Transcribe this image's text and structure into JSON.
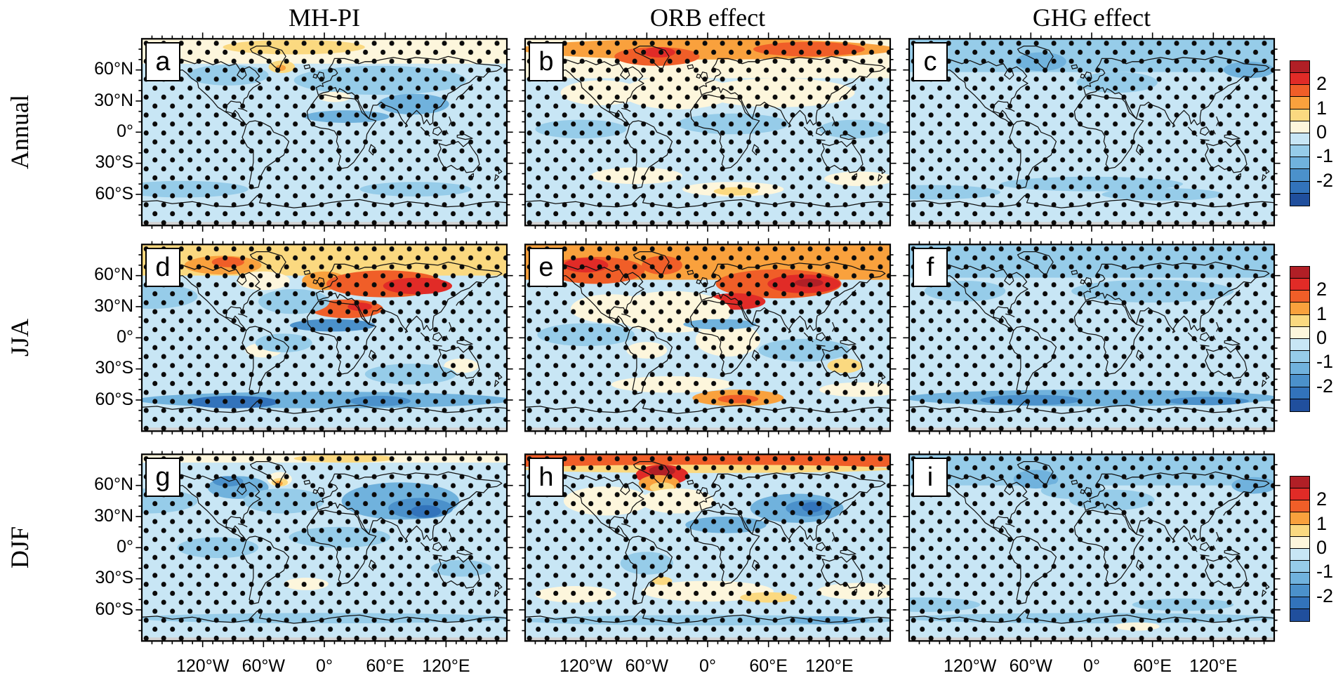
{
  "chart_data": {
    "type": "heatmap",
    "description": "3x3 grid of global equirectangular maps of surface temperature anomalies with black stippling dots over significant regions; shared discrete red-blue colorbar per row.",
    "columns": [
      "MH-PI",
      "ORB effect",
      "GHG effect"
    ],
    "rows": [
      "Annual",
      "JJA",
      "DJF"
    ],
    "x_tick_labels": [
      "120°W",
      "60°W",
      "0°",
      "60°E",
      "120°E"
    ],
    "x_tick_lons": [
      -120,
      -60,
      0,
      60,
      120
    ],
    "y_tick_labels": [
      "60°N",
      "30°N",
      "0°",
      "30°S",
      "60°S"
    ],
    "y_tick_lats": [
      60,
      30,
      0,
      -30,
      -60
    ],
    "lon_range": [
      -180,
      180
    ],
    "lat_range": [
      -90,
      90
    ],
    "stippling": "black dots in a diagonal lattice covering most of every map",
    "polar_gap_color": "#d2d2d2",
    "coast_color": "#111111",
    "colorbar": {
      "orientation": "vertical",
      "segment_colors_top_to_bottom": [
        "#b11f26",
        "#e12b27",
        "#f05e28",
        "#f9a13d",
        "#fbd980",
        "#fdf6dc",
        "#c8e6f5",
        "#96cce9",
        "#70b2dd",
        "#4b91cb",
        "#3273bb",
        "#204f9d"
      ],
      "boundaries_top_to_bottom": [
        2.5,
        2,
        1.5,
        1,
        0.5,
        0,
        -0.5,
        -1,
        -1.5,
        -2,
        -2.5
      ],
      "tick_labels": [
        "2",
        "1",
        "0",
        "-1",
        "-2"
      ],
      "tick_boundary_indices": [
        2,
        4,
        6,
        8,
        10
      ]
    },
    "panels": [
      {
        "letter": "a",
        "row": 0,
        "col": 0,
        "base": -0.25,
        "bands": [
          [
            66,
            90,
            0.25
          ]
        ],
        "blobs": [
          [
            -30,
            82,
            70,
            7,
            0.75
          ],
          [
            -42,
            63,
            13,
            6,
            0.75
          ],
          [
            -43,
            62,
            5,
            3,
            1.25
          ],
          [
            -95,
            55,
            40,
            10,
            -0.75
          ],
          [
            55,
            50,
            85,
            14,
            -0.75
          ],
          [
            88,
            27,
            35,
            10,
            -1.25
          ],
          [
            22,
            15,
            42,
            6,
            -1.25
          ],
          [
            10,
            34,
            16,
            5,
            0.25
          ],
          [
            -140,
            -55,
            65,
            8,
            -0.75
          ],
          [
            90,
            -55,
            55,
            7,
            -0.75
          ]
        ],
        "note": "Weak cooling 0 to -1 over most oceans and tropics; -1 to -1.5 band over Sahel, Arabia and South Asia; weak warming north of ~66N with +1 to +1.5 spot south of Greenland."
      },
      {
        "letter": "b",
        "row": 0,
        "col": 1,
        "base": -0.25,
        "bands": [
          [
            52,
            90,
            0.25
          ]
        ],
        "blobs": [
          [
            0,
            80,
            185,
            10,
            1.25
          ],
          [
            -50,
            73,
            42,
            9,
            1.75
          ],
          [
            -48,
            77,
            16,
            5,
            2.25
          ],
          [
            100,
            80,
            55,
            7,
            1.75
          ],
          [
            -30,
            38,
            55,
            16,
            0.25
          ],
          [
            70,
            38,
            75,
            14,
            0.25
          ],
          [
            -105,
            38,
            40,
            12,
            0.25
          ],
          [
            25,
            8,
            55,
            10,
            -0.75
          ],
          [
            -125,
            3,
            45,
            9,
            -0.75
          ],
          [
            145,
            3,
            35,
            9,
            -0.75
          ],
          [
            25,
            -55,
            50,
            7,
            0.25
          ],
          [
            28,
            -57,
            22,
            4,
            0.75
          ],
          [
            -70,
            -42,
            45,
            8,
            0.25
          ],
          [
            150,
            -45,
            35,
            7,
            0.25
          ]
        ],
        "note": "Arctic warming +1 to +2.5 strongest near Greenland; near-zero over NH mid-latitudes; weak cooling in tropics; slight warming band in Southern Ocean near 55S."
      },
      {
        "letter": "c",
        "row": 0,
        "col": 2,
        "base": -0.25,
        "bands": [
          [
            58,
            90,
            -0.75
          ]
        ],
        "blobs": [
          [
            -50,
            68,
            25,
            9,
            -1.25
          ],
          [
            155,
            60,
            25,
            8,
            -1.25
          ],
          [
            25,
            48,
            40,
            10,
            -0.75
          ],
          [
            0,
            -50,
            90,
            7,
            -0.75
          ],
          [
            -160,
            -58,
            70,
            7,
            -0.75
          ],
          [
            70,
            -60,
            60,
            6,
            -0.75
          ]
        ],
        "note": "Uniform weak cooling 0 to -1 everywhere; -0.5 to -1.5 band north of ~58N and along the Southern Ocean."
      },
      {
        "letter": "d",
        "row": 1,
        "col": 0,
        "base": -0.25,
        "bands": [
          [
            60,
            90,
            0.75
          ]
        ],
        "blobs": [
          [
            -100,
            70,
            38,
            9,
            1.25
          ],
          [
            -95,
            73,
            16,
            5,
            1.75
          ],
          [
            0,
            55,
            22,
            9,
            1.25
          ],
          [
            60,
            52,
            58,
            13,
            1.75
          ],
          [
            92,
            50,
            34,
            8,
            2.25
          ],
          [
            22,
            28,
            36,
            9,
            1.75
          ],
          [
            35,
            30,
            12,
            4,
            2.25
          ],
          [
            -60,
            55,
            26,
            9,
            0.25
          ],
          [
            8,
            12,
            42,
            6,
            -1.75
          ],
          [
            -30,
            35,
            35,
            12,
            -0.75
          ],
          [
            -170,
            40,
            45,
            12,
            -0.75
          ],
          [
            -60,
            -12,
            18,
            7,
            0.25
          ],
          [
            135,
            -27,
            17,
            7,
            0.25
          ],
          [
            0,
            -60,
            185,
            8,
            -1.25
          ],
          [
            -90,
            -62,
            45,
            6,
            -2.25
          ],
          [
            55,
            -61,
            30,
            5,
            -1.75
          ],
          [
            -40,
            -5,
            28,
            9,
            -0.75
          ],
          [
            85,
            -35,
            45,
            10,
            -0.75
          ]
        ],
        "note": "Strong warming +1.5 to +2.5 over Eurasia 40-65N and Sahara/Middle East; yellow Arctic band; dark cooling band over Sahel; cooling oceans with -2 to -2.5 core in Southern Ocean."
      },
      {
        "letter": "e",
        "row": 1,
        "col": 1,
        "base": -0.25,
        "bands": [
          [
            56,
            90,
            1.25
          ]
        ],
        "blobs": [
          [
            -110,
            65,
            48,
            13,
            1.75
          ],
          [
            -120,
            70,
            22,
            7,
            2.25
          ],
          [
            -45,
            70,
            20,
            9,
            1.75
          ],
          [
            70,
            52,
            62,
            14,
            1.75
          ],
          [
            95,
            52,
            36,
            9,
            2.25
          ],
          [
            100,
            53,
            14,
            4,
            2.75
          ],
          [
            27,
            35,
            30,
            8,
            2.25
          ],
          [
            -35,
            25,
            58,
            20,
            0.25
          ],
          [
            -95,
            28,
            40,
            14,
            0.25
          ],
          [
            20,
            -2,
            32,
            16,
            0.25
          ],
          [
            12,
            13,
            36,
            5,
            -1.25
          ],
          [
            -120,
            3,
            48,
            11,
            -0.75
          ],
          [
            95,
            -12,
            45,
            11,
            -0.75
          ],
          [
            -60,
            -12,
            20,
            8,
            0.25
          ],
          [
            135,
            -27,
            17,
            7,
            0.75
          ],
          [
            -35,
            -45,
            60,
            8,
            0.25
          ],
          [
            30,
            -58,
            45,
            8,
            1.25
          ],
          [
            30,
            -59,
            20,
            4,
            1.75
          ],
          [
            150,
            -50,
            40,
            7,
            0.25
          ]
        ],
        "note": "Strongest warming: +1.5 to >+2.5 over high-latitude North America and Eurasia, red core over central Asia and Mediterranean; near-zero NH oceans; weak tropical cooling; warm patch near 60S, 0-60E."
      },
      {
        "letter": "f",
        "row": 1,
        "col": 2,
        "base": -0.25,
        "bands": [
          [
            58,
            90,
            -0.75
          ]
        ],
        "blobs": [
          [
            60,
            45,
            80,
            11,
            -0.75
          ],
          [
            -125,
            45,
            40,
            10,
            -0.75
          ],
          [
            0,
            -58,
            185,
            8,
            -1.25
          ],
          [
            -60,
            -60,
            50,
            5,
            -1.75
          ],
          [
            115,
            -61,
            40,
            4,
            -1.75
          ]
        ],
        "note": "Weak cooling everywhere; -1 to -2 band along the Southern Ocean near 60S."
      },
      {
        "letter": "g",
        "row": 2,
        "col": 0,
        "base": -0.25,
        "bands": [
          [
            82,
            90,
            0.25
          ]
        ],
        "blobs": [
          [
            20,
            86,
            50,
            4,
            0.75
          ],
          [
            -44,
            66,
            12,
            7,
            0.25
          ],
          [
            -44,
            63,
            8,
            4,
            0.75
          ],
          [
            -45,
            62,
            4,
            2.5,
            1.25
          ],
          [
            -85,
            58,
            30,
            11,
            -1.25
          ],
          [
            -95,
            64,
            15,
            5,
            -1.75
          ],
          [
            75,
            45,
            58,
            18,
            -1.25
          ],
          [
            95,
            38,
            32,
            10,
            -1.75
          ],
          [
            100,
            35,
            15,
            6,
            -2.25
          ],
          [
            -40,
            45,
            40,
            12,
            -0.75
          ],
          [
            -175,
            45,
            50,
            12,
            -0.75
          ],
          [
            15,
            10,
            50,
            10,
            -0.75
          ],
          [
            -105,
            0,
            40,
            10,
            -0.75
          ],
          [
            -18,
            -35,
            22,
            6,
            0.25
          ],
          [
            0,
            -68,
            185,
            5,
            -0.75
          ],
          [
            135,
            -20,
            30,
            8,
            -0.75
          ]
        ],
        "note": "Cooling dominates: -1.5 to -2.5 core over central/east Asia, -1 to -2 over NE North America; slight warming strip along the Arctic edge with orange spot south of Greenland."
      },
      {
        "letter": "h",
        "row": 2,
        "col": 1,
        "base": -0.25,
        "bands": [
          [
            78,
            90,
            1.75
          ]
        ],
        "blobs": [
          [
            0,
            76,
            185,
            4,
            0.75
          ],
          [
            -45,
            70,
            26,
            10,
            2.25
          ],
          [
            -45,
            74,
            13,
            5,
            2.75
          ],
          [
            -48,
            62,
            20,
            8,
            1.25
          ],
          [
            -45,
            58,
            12,
            5,
            0.75
          ],
          [
            -100,
            45,
            42,
            14,
            0.25
          ],
          [
            -30,
            45,
            36,
            12,
            0.25
          ],
          [
            88,
            38,
            46,
            14,
            -1.25
          ],
          [
            100,
            38,
            23,
            8,
            -1.75
          ],
          [
            103,
            39,
            10,
            5,
            -2.25
          ],
          [
            18,
            22,
            40,
            8,
            -1.25
          ],
          [
            -60,
            -15,
            26,
            11,
            -0.75
          ],
          [
            0,
            -42,
            65,
            10,
            0.25
          ],
          [
            -45,
            -32,
            10,
            4,
            0.75
          ],
          [
            60,
            -48,
            28,
            5,
            0.75
          ],
          [
            150,
            -42,
            42,
            8,
            0.25
          ],
          [
            -130,
            -45,
            40,
            8,
            0.25
          ],
          [
            0,
            -70,
            185,
            5,
            -0.75
          ],
          [
            120,
            -70,
            40,
            4,
            -1.25
          ]
        ],
        "note": "Orange Arctic strip with +2 to >+2.5 red patch over Greenland; near-zero NH mid-latitudes; -1.5 to -2.5 core over central Asia; cream bands with small warm spots in SH subtropics."
      },
      {
        "letter": "i",
        "row": 2,
        "col": 2,
        "base": -0.25,
        "bands": [
          [
            60,
            90,
            -0.75
          ]
        ],
        "blobs": [
          [
            -55,
            66,
            22,
            9,
            -1.25
          ],
          [
            160,
            60,
            22,
            8,
            -1.25
          ],
          [
            20,
            46,
            42,
            10,
            -0.75
          ],
          [
            -20,
            55,
            30,
            8,
            -0.75
          ],
          [
            0,
            -68,
            185,
            5,
            -0.75
          ],
          [
            45,
            -76,
            22,
            4,
            0.25
          ],
          [
            -165,
            -55,
            55,
            7,
            -0.75
          ],
          [
            90,
            -55,
            50,
            6,
            -0.75
          ]
        ],
        "note": "Weak cooling everywhere; -0.5 to -1.5 north of 60N and along the Antarctic coastal ocean; tiny near-zero patch near Antarctica around 30-60E."
      }
    ]
  }
}
